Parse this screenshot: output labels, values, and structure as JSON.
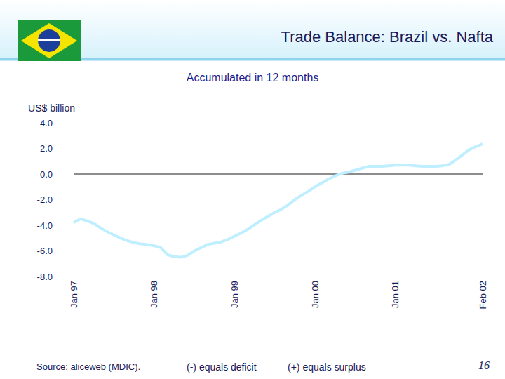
{
  "chart_data": {
    "type": "line",
    "title": "Trade Balance: Brazil vs. Nafta",
    "subtitle": "Accumulated in 12 months",
    "y_label": "US$ billion",
    "annotations": [
      "Source: aliceweb (MDIC).",
      "(-) equals deficit",
      "(+) equals surplus",
      "16"
    ],
    "categories": [
      "Jan 97",
      null,
      null,
      null,
      null,
      null,
      null,
      null,
      null,
      null,
      null,
      null,
      "Jan 98",
      null,
      null,
      null,
      null,
      null,
      null,
      null,
      null,
      null,
      null,
      null,
      "Jan 99",
      null,
      null,
      null,
      null,
      null,
      null,
      null,
      null,
      null,
      null,
      null,
      "Jan 00",
      null,
      null,
      null,
      null,
      null,
      null,
      null,
      null,
      null,
      null,
      null,
      "Jan 01",
      null,
      null,
      null,
      null,
      null,
      null,
      null,
      null,
      null,
      null,
      null,
      null,
      "Feb 02"
    ],
    "values": [
      -3.8,
      -3.5,
      -3.65,
      -3.85,
      -4.2,
      -4.5,
      -4.75,
      -5.0,
      -5.2,
      -5.35,
      -5.45,
      -5.5,
      -5.6,
      -5.75,
      -6.3,
      -6.45,
      -6.5,
      -6.35,
      -6.0,
      -5.75,
      -5.5,
      -5.4,
      -5.3,
      -5.1,
      -4.85,
      -4.6,
      -4.3,
      -3.95,
      -3.6,
      -3.3,
      -3.0,
      -2.75,
      -2.4,
      -2.0,
      -1.65,
      -1.35,
      -1.0,
      -0.7,
      -0.4,
      -0.15,
      0.05,
      0.15,
      0.3,
      0.45,
      0.6,
      0.6,
      0.6,
      0.65,
      0.7,
      0.7,
      0.7,
      0.65,
      0.6,
      0.6,
      0.6,
      0.65,
      0.75,
      1.1,
      1.5,
      1.9,
      2.15,
      2.35
    ],
    "color": "#bfefff",
    "ylim": [
      -8,
      4
    ],
    "yticks": [
      {
        "value": -8,
        "label": "-8.0"
      },
      {
        "value": -6,
        "label": "-6.0"
      },
      {
        "value": -4,
        "label": "-4.0"
      },
      {
        "value": -2,
        "label": "-2.0"
      },
      {
        "value": 0,
        "label": "0.0"
      },
      {
        "value": 2,
        "label": "2.0"
      },
      {
        "value": 4,
        "label": "4.0"
      }
    ],
    "grid": false
  }
}
